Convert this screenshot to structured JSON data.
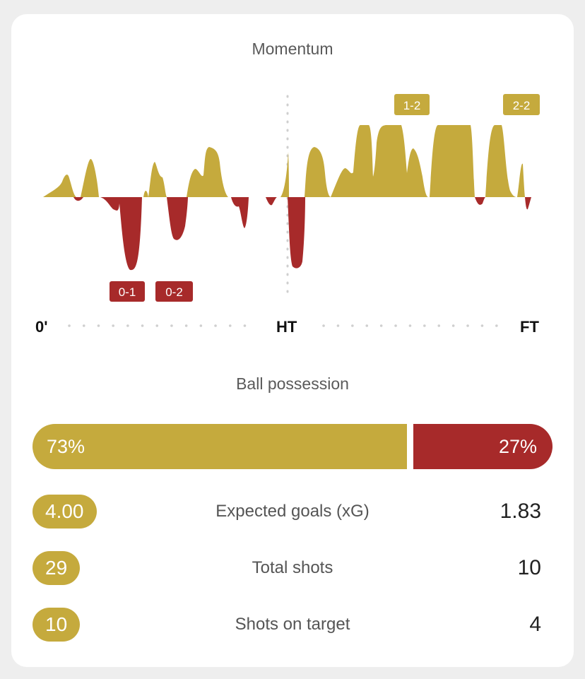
{
  "colors": {
    "home": "#c5aa3d",
    "away": "#a72a2a",
    "grid_dot": "#cfcfcf",
    "card_bg": "#ffffff",
    "page_bg": "#eeeeee"
  },
  "momentum": {
    "title": "Momentum",
    "axis_labels": {
      "start": "0'",
      "half": "HT",
      "end": "FT"
    },
    "goals": [
      {
        "label": "0-1",
        "team": "away"
      },
      {
        "label": "0-2",
        "team": "away"
      },
      {
        "label": "1-2",
        "team": "home"
      },
      {
        "label": "2-2",
        "team": "home"
      }
    ]
  },
  "possession": {
    "title": "Ball possession",
    "home_text": "73%",
    "away_text": "27%"
  },
  "stats": [
    {
      "label": "Expected goals (xG)",
      "home": "4.00",
      "away": "1.83"
    },
    {
      "label": "Total shots",
      "home": "29",
      "away": "10"
    },
    {
      "label": "Shots on target",
      "home": "10",
      "away": "4"
    }
  ]
}
